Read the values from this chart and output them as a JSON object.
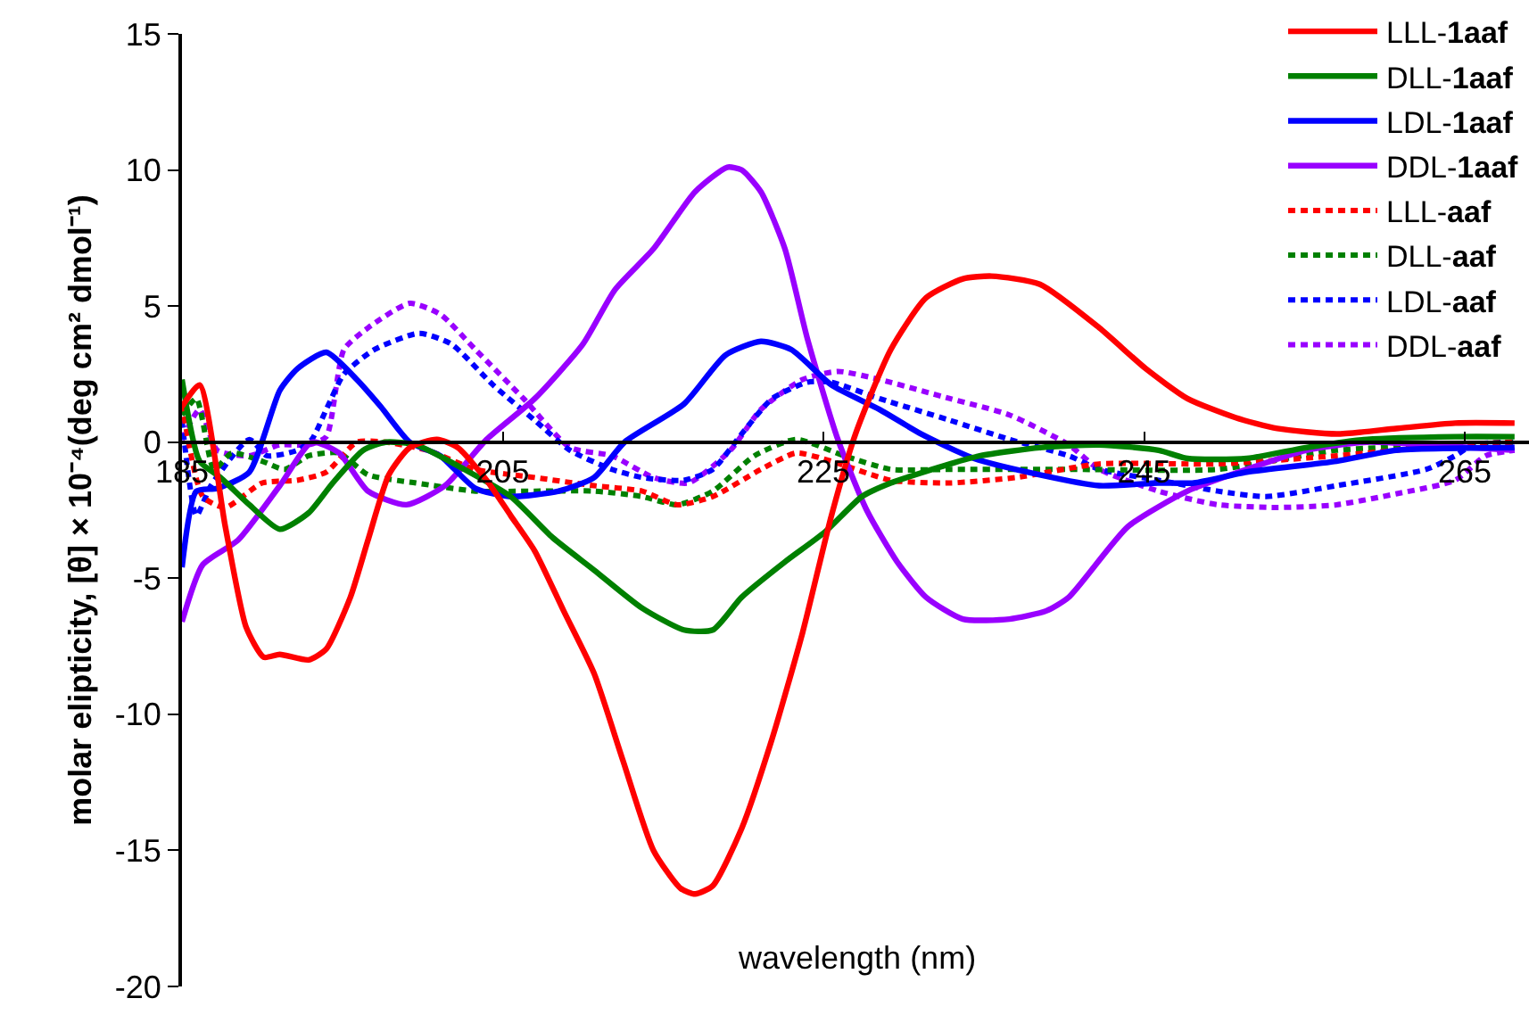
{
  "chart_data": {
    "type": "line",
    "xlabel": "wavelength (nm)",
    "ylabel": "molar elipticity, [θ] × 10⁻⁴(deg cm² dmol⁻¹)",
    "xlim": [
      185,
      269
    ],
    "xticks": [
      185,
      205,
      225,
      245,
      265
    ],
    "ylim": [
      -20,
      15
    ],
    "yticks": [
      -20,
      -15,
      -10,
      -5,
      0,
      5,
      10,
      15
    ],
    "grid": false,
    "legend": "top right",
    "marker": "none",
    "series": [
      {
        "name": "LLL-1aaf",
        "color": "#ff0000",
        "line_style": "solid",
        "x": [
          185,
          186.1,
          187.7,
          189.0,
          190.1,
          191.1,
          192.9,
          194.0,
          195.5,
          196.6,
          197.9,
          199.2,
          200.9,
          202.2,
          204.0,
          205.5,
          207.0,
          208.8,
          210.7,
          212.5,
          214.4,
          216.1,
          217.0,
          218.1,
          219.9,
          221.8,
          223.7,
          225.5,
          227.0,
          229.2,
          231.4,
          233.7,
          235.5,
          238.5,
          242.2,
          245.1,
          247.7,
          250.7,
          253.3,
          257.0,
          260.7,
          264.4,
          268.1
        ],
        "values": [
          1.3,
          2.1,
          -3.1,
          -6.8,
          -7.9,
          -7.8,
          -8.0,
          -7.6,
          -5.7,
          -3.6,
          -1.2,
          -0.2,
          0.1,
          -0.2,
          -1.4,
          -2.7,
          -4.0,
          -6.2,
          -8.5,
          -11.7,
          -15.0,
          -16.4,
          -16.6,
          -16.3,
          -14.2,
          -10.9,
          -7.0,
          -2.7,
          0.3,
          3.4,
          5.3,
          6.0,
          6.1,
          5.8,
          4.2,
          2.7,
          1.6,
          0.9,
          0.5,
          0.3,
          0.5,
          0.7,
          0.7
        ]
      },
      {
        "name": "DLL-1aaf",
        "color": "#008000",
        "line_style": "solid",
        "x": [
          185,
          186.1,
          187.4,
          189.2,
          191.1,
          192.9,
          194.4,
          196.3,
          197.7,
          199.6,
          202.6,
          205.5,
          208.1,
          210.7,
          213.7,
          216.3,
          218.1,
          219.9,
          222.6,
          225.1,
          227.4,
          229.2,
          232.9,
          234.8,
          238.5,
          242.2,
          245.9,
          247.7,
          251.4,
          255.1,
          258.9,
          264.4,
          268.1
        ],
        "values": [
          2.3,
          -0.7,
          -1.3,
          -2.3,
          -3.2,
          -2.6,
          -1.5,
          -0.3,
          0.0,
          -0.1,
          -1.0,
          -2.0,
          -3.5,
          -4.7,
          -6.1,
          -6.9,
          -6.9,
          -5.7,
          -4.4,
          -3.3,
          -2.0,
          -1.5,
          -0.8,
          -0.5,
          -0.2,
          -0.1,
          -0.3,
          -0.6,
          -0.6,
          -0.2,
          0.1,
          0.2,
          0.2
        ]
      },
      {
        "name": "LDL-1aaf",
        "color": "#0000ff",
        "line_style": "solid",
        "x": [
          185,
          185.9,
          187.2,
          189.2,
          191.1,
          192.2,
          194.0,
          195.9,
          197.4,
          199.2,
          201.1,
          203.3,
          205.5,
          208.5,
          210.7,
          212.6,
          216.3,
          218.9,
          221.1,
          223.0,
          225.5,
          228.5,
          231.1,
          234.4,
          238.5,
          242.2,
          245.9,
          248.1,
          251.4,
          257.0,
          260.7,
          268.1
        ],
        "values": [
          -4.6,
          -1.8,
          -1.7,
          -1.1,
          1.9,
          2.7,
          3.3,
          2.3,
          1.3,
          0.0,
          -0.5,
          -1.7,
          -2.0,
          -1.8,
          -1.3,
          0.0,
          1.4,
          3.2,
          3.7,
          3.4,
          2.1,
          1.2,
          0.3,
          -0.6,
          -1.2,
          -1.6,
          -1.5,
          -1.5,
          -1.1,
          -0.7,
          -0.3,
          -0.2
        ]
      },
      {
        "name": "DDL-1aaf",
        "color": "#9900ff",
        "line_style": "solid",
        "x": [
          185,
          186.3,
          188.5,
          191.1,
          193.1,
          194.8,
          196.6,
          199.0,
          201.4,
          204.0,
          207.0,
          210.0,
          212.0,
          214.4,
          217.0,
          219.0,
          219.9,
          221.1,
          222.6,
          224.0,
          225.9,
          227.7,
          229.6,
          231.4,
          233.7,
          236.6,
          238.9,
          240.3,
          244.0,
          247.7,
          251.4,
          255.1,
          258.9,
          262.6,
          268.1
        ],
        "values": [
          -6.6,
          -4.5,
          -3.6,
          -1.6,
          0.0,
          -0.4,
          -1.8,
          -2.3,
          -1.6,
          0.1,
          1.6,
          3.6,
          5.6,
          7.1,
          9.2,
          10.1,
          10.0,
          9.2,
          7.1,
          3.8,
          0.1,
          -2.5,
          -4.4,
          -5.7,
          -6.5,
          -6.5,
          -6.2,
          -5.7,
          -3.1,
          -1.8,
          -1.0,
          -0.3,
          0.0,
          -0.1,
          -0.3
        ]
      },
      {
        "name": "LLL-aaf",
        "color": "#ff0000",
        "line_style": "dotted",
        "x": [
          185,
          186.3,
          187.7,
          190.0,
          192.2,
          194.0,
          195.9,
          197.7,
          200.3,
          203.3,
          207.0,
          210.7,
          213.7,
          215.9,
          218.1,
          221.1,
          223.3,
          225.5,
          229.2,
          232.9,
          237.0,
          242.2,
          249.6,
          257.0,
          264.4,
          268.1
        ],
        "values": [
          1.4,
          -2.0,
          -2.4,
          -1.5,
          -1.4,
          -1.1,
          0.0,
          0.0,
          -0.3,
          -1.0,
          -1.3,
          -1.6,
          -1.8,
          -2.3,
          -2.0,
          -1.0,
          -0.4,
          -0.7,
          -1.4,
          -1.5,
          -1.3,
          -0.8,
          -0.8,
          -0.5,
          -0.1,
          0.0
        ]
      },
      {
        "name": "DLL-aaf",
        "color": "#008000",
        "line_style": "dotted",
        "x": [
          185,
          185.9,
          187.0,
          188.1,
          190.0,
          191.4,
          192.9,
          194.8,
          196.6,
          199.6,
          203.3,
          207.0,
          210.7,
          213.7,
          215.9,
          218.1,
          220.7,
          223.3,
          226.3,
          229.2,
          232.9,
          240.3,
          249.6,
          257.0,
          264.4,
          268.1
        ],
        "values": [
          1.0,
          1.6,
          -1.0,
          -0.4,
          -0.7,
          -1.0,
          -0.5,
          -0.4,
          -1.2,
          -1.5,
          -1.8,
          -1.8,
          -1.8,
          -2.0,
          -2.3,
          -1.8,
          -0.5,
          0.1,
          -0.5,
          -1.0,
          -1.0,
          -1.0,
          -1.0,
          -0.3,
          -0.1,
          0.0
        ]
      },
      {
        "name": "LDL-aaf",
        "color": "#0000ff",
        "line_style": "dotted",
        "x": [
          185,
          185.9,
          186.8,
          189.2,
          190.3,
          192.2,
          193.1,
          194.0,
          195.1,
          197.0,
          199.8,
          201.8,
          204.4,
          207.0,
          209.2,
          211.8,
          213.7,
          216.3,
          218.1,
          219.9,
          221.8,
          224.0,
          225.5,
          228.5,
          232.9,
          236.6,
          240.3,
          242.2,
          245.9,
          249.6,
          252.6,
          257.0,
          262.6,
          264.4,
          265.5,
          268.1
        ],
        "values": [
          0.8,
          -2.7,
          -1.6,
          0.1,
          -0.5,
          -0.3,
          0.1,
          1.2,
          2.5,
          3.4,
          4.0,
          3.6,
          2.1,
          0.8,
          -0.3,
          -1.0,
          -1.3,
          -1.4,
          -1.0,
          0.3,
          1.6,
          2.2,
          2.2,
          1.6,
          0.8,
          0.1,
          -0.5,
          -1.0,
          -1.4,
          -1.8,
          -2.0,
          -1.6,
          -1.0,
          -0.5,
          -0.1,
          0.0
        ]
      },
      {
        "name": "DDL-aaf",
        "color": "#9900ff",
        "line_style": "dotted",
        "x": [
          185,
          186.1,
          187.2,
          189.2,
          191.1,
          192.9,
          194.0,
          195.1,
          196.6,
          199.2,
          201.1,
          203.3,
          206.3,
          209.2,
          211.8,
          214.4,
          216.6,
          219.2,
          221.1,
          223.7,
          225.9,
          228.5,
          232.9,
          236.6,
          240.3,
          242.2,
          245.9,
          249.6,
          253.3,
          257.0,
          260.7,
          264.4,
          266.3,
          268.1
        ],
        "values": [
          0.1,
          1.2,
          -0.3,
          -0.5,
          -0.1,
          -0.1,
          0.2,
          3.4,
          4.2,
          5.1,
          4.7,
          3.4,
          1.6,
          -0.2,
          -0.5,
          -1.3,
          -1.5,
          -0.3,
          1.2,
          2.3,
          2.6,
          2.3,
          1.6,
          1.0,
          -0.1,
          -1.0,
          -1.8,
          -2.3,
          -2.4,
          -2.3,
          -1.9,
          -1.4,
          -0.5,
          -0.3
        ]
      }
    ]
  }
}
